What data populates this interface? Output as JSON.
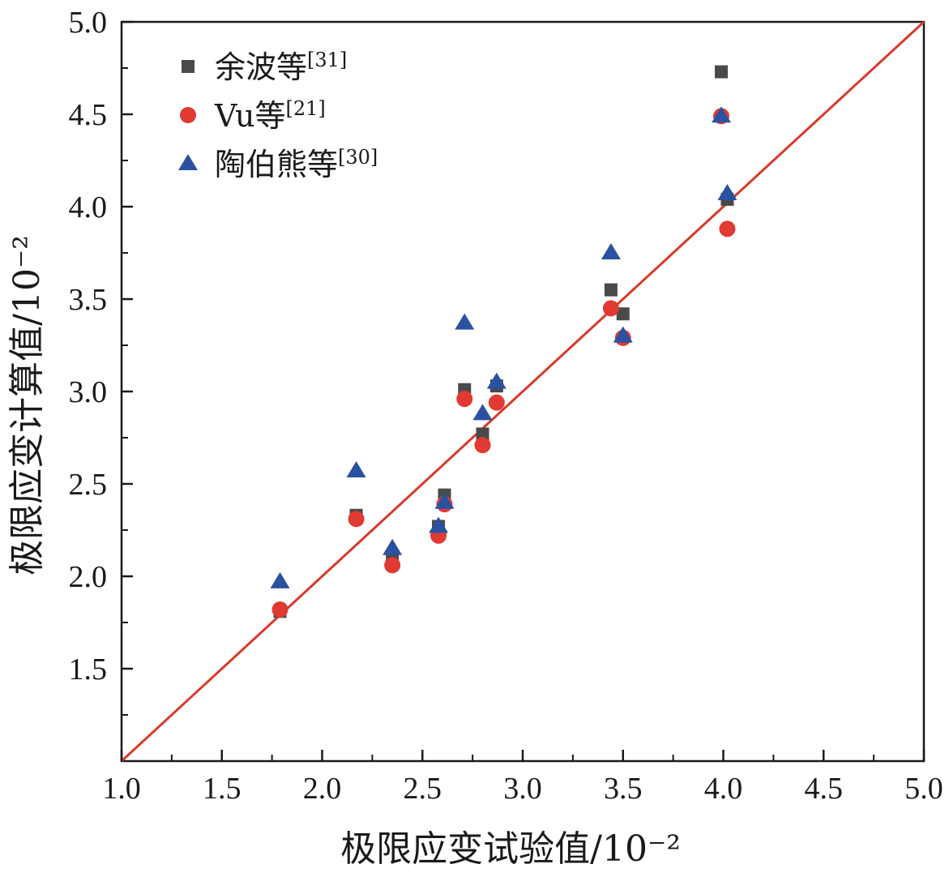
{
  "chart_data": {
    "type": "scatter",
    "title": "",
    "xlabel": "极限应变试验值/10⁻²",
    "ylabel": "极限应变计算值/10⁻²",
    "xlim": [
      1.0,
      5.0
    ],
    "ylim": [
      1.0,
      5.0
    ],
    "xticks": [
      "1.0",
      "1.5",
      "2.0",
      "2.5",
      "3.0",
      "3.5",
      "4.0",
      "4.5",
      "5.0"
    ],
    "yticks": [
      "1.5",
      "2.0",
      "2.5",
      "3.0",
      "3.5",
      "4.0",
      "4.5",
      "5.0"
    ],
    "grid": false,
    "legend_position": "top-left",
    "reference_line": {
      "x": [
        1.0,
        5.0
      ],
      "y": [
        1.0,
        5.0
      ],
      "color": "#d93a2b"
    },
    "series": [
      {
        "name": "余波等",
        "ref": "[31]",
        "marker": "square",
        "color": "#4a4a4a",
        "x": [
          1.79,
          2.17,
          2.35,
          2.58,
          2.61,
          2.71,
          2.8,
          2.87,
          3.44,
          3.5,
          3.99,
          4.02
        ],
        "y": [
          1.81,
          2.33,
          2.09,
          2.27,
          2.44,
          3.01,
          2.77,
          3.03,
          3.55,
          3.42,
          4.73,
          4.04
        ]
      },
      {
        "name": "Vu等",
        "ref": "[21]",
        "marker": "circle",
        "color": "#e03a33",
        "x": [
          1.79,
          2.17,
          2.35,
          2.58,
          2.61,
          2.71,
          2.8,
          2.87,
          3.44,
          3.5,
          3.99,
          4.02
        ],
        "y": [
          1.82,
          2.31,
          2.06,
          2.22,
          2.39,
          2.96,
          2.71,
          2.94,
          3.45,
          3.29,
          4.49,
          3.88
        ]
      },
      {
        "name": "陶伯熊等",
        "ref": "[30]",
        "marker": "triangle",
        "color": "#2a52a0",
        "x": [
          1.79,
          2.17,
          2.35,
          2.58,
          2.61,
          2.71,
          2.8,
          2.87,
          3.44,
          3.5,
          3.99,
          4.02
        ],
        "y": [
          1.97,
          2.57,
          2.15,
          2.27,
          2.4,
          3.37,
          2.88,
          3.05,
          3.75,
          3.3,
          4.49,
          4.07
        ]
      }
    ]
  }
}
